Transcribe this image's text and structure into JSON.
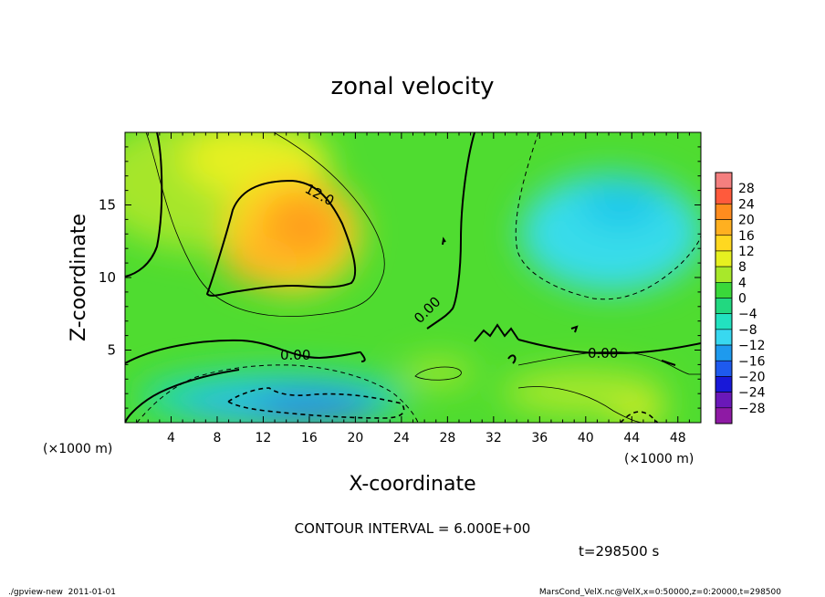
{
  "chart_data": {
    "type": "heatmap",
    "title": "zonal velocity",
    "xlabel": "X-coordinate",
    "ylabel": "Z-coordinate",
    "x_scale_note": "(×1000 m)",
    "y_scale_note": "(×1000 m)",
    "xlim": [
      0,
      50
    ],
    "ylim": [
      0,
      20
    ],
    "x_ticks": [
      4,
      8,
      12,
      16,
      20,
      24,
      28,
      32,
      36,
      40,
      44,
      48
    ],
    "y_ticks": [
      5,
      10,
      15
    ],
    "colorbar": {
      "levels": [
        28,
        24,
        20,
        16,
        12,
        8,
        4,
        0,
        -4,
        -8,
        -12,
        -16,
        -20,
        -24,
        -28
      ],
      "colors": [
        "#f47f7f",
        "#ff5a3c",
        "#ff8c1e",
        "#ffb020",
        "#ffd820",
        "#e6f020",
        "#a8e82a",
        "#3ad83a",
        "#22d880",
        "#22e2c0",
        "#38d8f0",
        "#1e9aee",
        "#1e5aee",
        "#1818d8",
        "#6a18b8",
        "#8e1aa4"
      ]
    },
    "contour_labels": [
      {
        "text": "12.0",
        "x": 15.5,
        "z": 16.0
      },
      {
        "text": "0.00",
        "x": 15.4,
        "z": 4.7
      },
      {
        "text": "0.00",
        "x": 27.2,
        "z": 7.8
      },
      {
        "text": "0.00",
        "x": 41.8,
        "z": 4.7
      }
    ],
    "contour_interval": "CONTOUR INTERVAL = 6.000E+00",
    "time": "t=298500 s"
  },
  "footer": {
    "left": "./gpview-new  2011-01-01",
    "right": "MarsCond_VelX.nc@VelX,x=0:50000,z=0:20000,t=298500"
  }
}
